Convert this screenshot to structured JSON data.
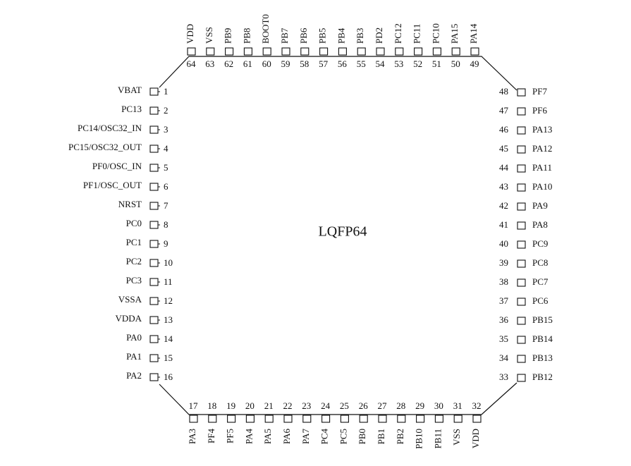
{
  "chip": {
    "label": "LQFP64"
  },
  "pins": {
    "left": [
      {
        "number": 1,
        "name": "VBAT"
      },
      {
        "number": 2,
        "name": "PC13"
      },
      {
        "number": 3,
        "name": "PC14/OSC32_IN"
      },
      {
        "number": 4,
        "name": "PC15/OSC32_OUT"
      },
      {
        "number": 5,
        "name": "PF0/OSC_IN"
      },
      {
        "number": 6,
        "name": "PF1/OSC_OUT"
      },
      {
        "number": 7,
        "name": "NRST"
      },
      {
        "number": 8,
        "name": "PC0"
      },
      {
        "number": 9,
        "name": "PC1"
      },
      {
        "number": 10,
        "name": "PC2"
      },
      {
        "number": 11,
        "name": "PC3"
      },
      {
        "number": 12,
        "name": "VSSA"
      },
      {
        "number": 13,
        "name": "VDDA"
      },
      {
        "number": 14,
        "name": "PA0"
      },
      {
        "number": 15,
        "name": "PA1"
      },
      {
        "number": 16,
        "name": "PA2"
      }
    ],
    "bottom": [
      {
        "number": 17,
        "name": "PA3"
      },
      {
        "number": 18,
        "name": "PF4"
      },
      {
        "number": 19,
        "name": "PF5"
      },
      {
        "number": 20,
        "name": "PA4"
      },
      {
        "number": 21,
        "name": "PA5"
      },
      {
        "number": 22,
        "name": "PA6"
      },
      {
        "number": 23,
        "name": "PA7"
      },
      {
        "number": 24,
        "name": "PC4"
      },
      {
        "number": 25,
        "name": "PC5"
      },
      {
        "number": 26,
        "name": "PB0"
      },
      {
        "number": 27,
        "name": "PB1"
      },
      {
        "number": 28,
        "name": "PB2"
      },
      {
        "number": 29,
        "name": "PB10"
      },
      {
        "number": 30,
        "name": "PB11"
      },
      {
        "number": 31,
        "name": "VSS"
      },
      {
        "number": 32,
        "name": "VDD"
      }
    ],
    "right": [
      {
        "number": 33,
        "name": "PB12"
      },
      {
        "number": 34,
        "name": "PB13"
      },
      {
        "number": 35,
        "name": "PB14"
      },
      {
        "number": 36,
        "name": "PB15"
      },
      {
        "number": 37,
        "name": "PC6"
      },
      {
        "number": 38,
        "name": "PC7"
      },
      {
        "number": 39,
        "name": "PC8"
      },
      {
        "number": 40,
        "name": "PC9"
      },
      {
        "number": 41,
        "name": "PA8"
      },
      {
        "number": 42,
        "name": "PA9"
      },
      {
        "number": 43,
        "name": "PA10"
      },
      {
        "number": 44,
        "name": "PA11"
      },
      {
        "number": 45,
        "name": "PA12"
      },
      {
        "number": 46,
        "name": "PA13"
      },
      {
        "number": 47,
        "name": "PF6"
      },
      {
        "number": 48,
        "name": "PF7"
      }
    ],
    "top": [
      {
        "number": 49,
        "name": "PA14"
      },
      {
        "number": 50,
        "name": "PA15"
      },
      {
        "number": 51,
        "name": "PC10"
      },
      {
        "number": 52,
        "name": "PC11"
      },
      {
        "number": 53,
        "name": "PC12"
      },
      {
        "number": 54,
        "name": "PD2"
      },
      {
        "number": 55,
        "name": "PB3"
      },
      {
        "number": 56,
        "name": "PB4"
      },
      {
        "number": 57,
        "name": "PB5"
      },
      {
        "number": 58,
        "name": "PB6"
      },
      {
        "number": 59,
        "name": "PB7"
      },
      {
        "number": 60,
        "name": "BOOT0"
      },
      {
        "number": 61,
        "name": "PB8"
      },
      {
        "number": 62,
        "name": "PB9"
      },
      {
        "number": 63,
        "name": "VSS"
      },
      {
        "number": 64,
        "name": "VDD"
      }
    ]
  }
}
